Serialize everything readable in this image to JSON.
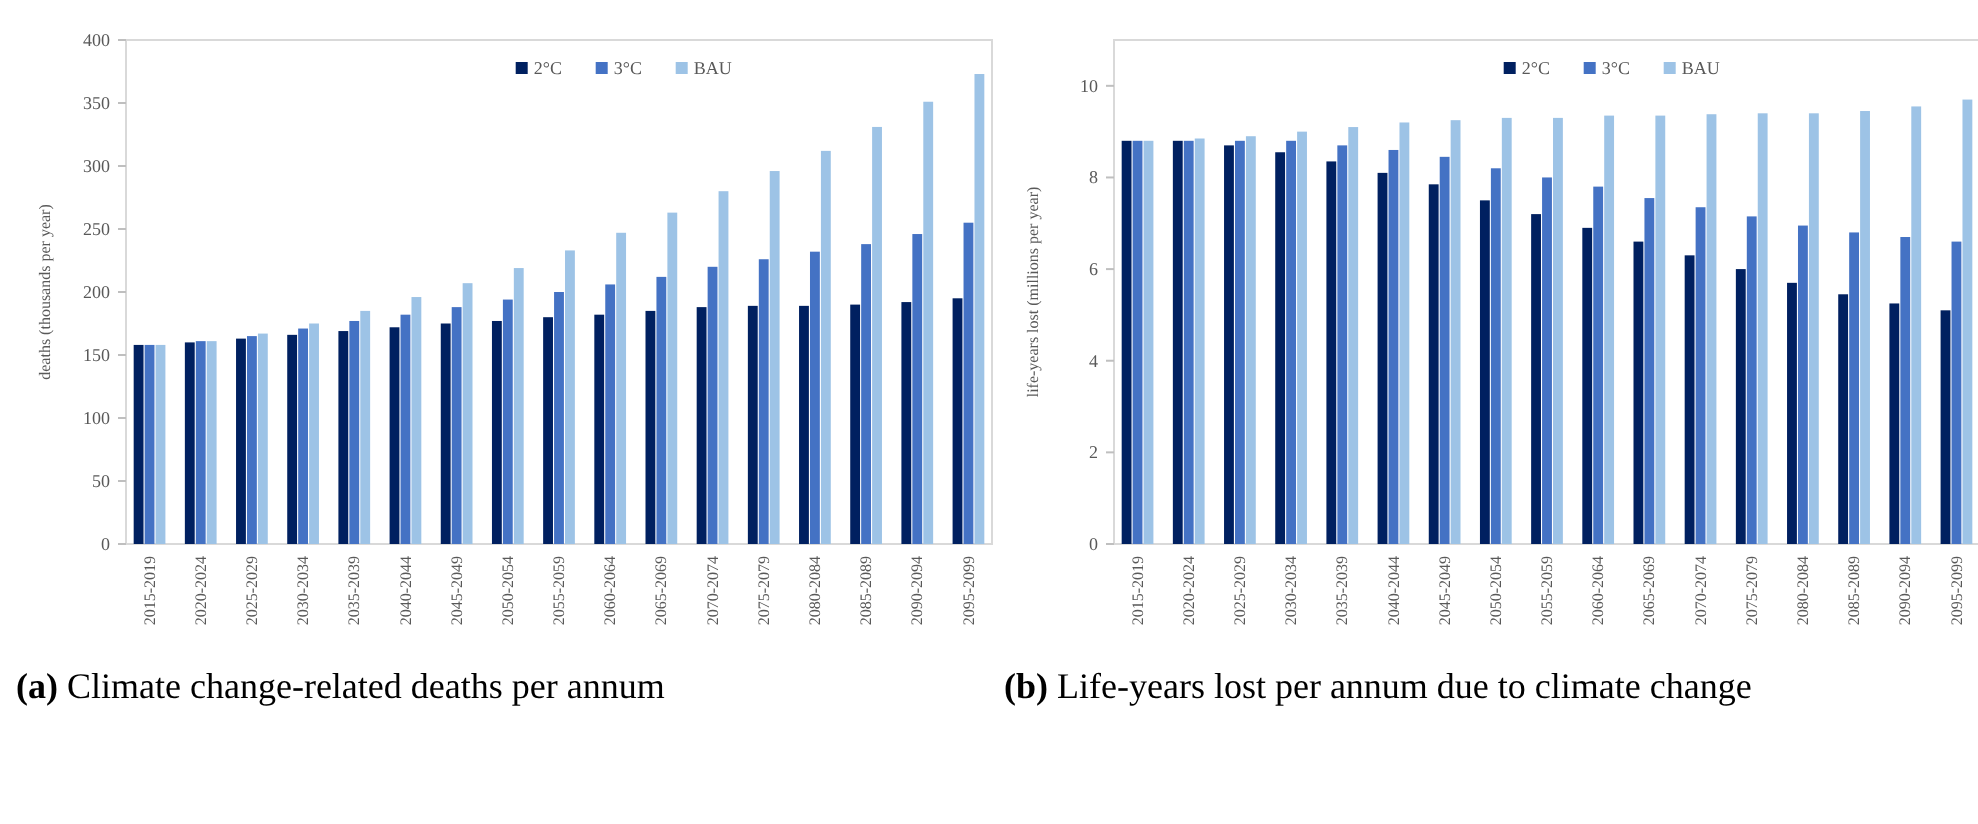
{
  "chart_data": [
    {
      "type": "bar",
      "ylabel": "deaths (thousands per year)",
      "categories": [
        "2015-2019",
        "2020-2024",
        "2025-2029",
        "2030-2034",
        "2035-2039",
        "2040-2044",
        "2045-2049",
        "2050-2054",
        "2055-2059",
        "2060-2064",
        "2065-2069",
        "2070-2074",
        "2075-2079",
        "2080-2084",
        "2085-2089",
        "2090-2094",
        "2095-2099"
      ],
      "series": [
        {
          "name": "2°C",
          "color": "#002060",
          "values": [
            158,
            160,
            163,
            166,
            169,
            172,
            175,
            177,
            180,
            182,
            185,
            188,
            189,
            189,
            190,
            192,
            195
          ]
        },
        {
          "name": "3°C",
          "color": "#4472c4",
          "values": [
            158,
            161,
            165,
            171,
            177,
            182,
            188,
            194,
            200,
            206,
            212,
            220,
            226,
            232,
            238,
            246,
            255
          ]
        },
        {
          "name": "BAU",
          "color": "#9dc3e6",
          "values": [
            158,
            161,
            167,
            175,
            185,
            196,
            207,
            219,
            233,
            247,
            263,
            280,
            296,
            312,
            331,
            351,
            373
          ]
        }
      ],
      "ylim": [
        0,
        400
      ],
      "yticks": [
        0,
        50,
        100,
        150,
        200,
        250,
        300,
        350,
        400
      ],
      "grid": false,
      "legend": "top right",
      "annotations": [
        "(a) Climate change-related deaths per annum"
      ]
    },
    {
      "type": "bar",
      "ylabel": "life-years lost (millions per year)",
      "categories": [
        "2015-2019",
        "2020-2024",
        "2025-2029",
        "2030-2034",
        "2035-2039",
        "2040-2044",
        "2045-2049",
        "2050-2054",
        "2055-2059",
        "2060-2064",
        "2065-2069",
        "2070-2074",
        "2075-2079",
        "2080-2084",
        "2085-2089",
        "2090-2094",
        "2095-2099"
      ],
      "series": [
        {
          "name": "2°C",
          "color": "#002060",
          "values": [
            8.8,
            8.8,
            8.7,
            8.55,
            8.35,
            8.1,
            7.85,
            7.5,
            7.2,
            6.9,
            6.6,
            6.3,
            6.0,
            5.7,
            5.45,
            5.25,
            5.1
          ]
        },
        {
          "name": "3°C",
          "color": "#4472c4",
          "values": [
            8.8,
            8.8,
            8.8,
            8.8,
            8.7,
            8.6,
            8.45,
            8.2,
            8.0,
            7.8,
            7.55,
            7.35,
            7.15,
            6.95,
            6.8,
            6.7,
            6.6
          ]
        },
        {
          "name": "BAU",
          "color": "#9dc3e6",
          "values": [
            8.8,
            8.85,
            8.9,
            9.0,
            9.1,
            9.2,
            9.25,
            9.3,
            9.3,
            9.35,
            9.35,
            9.38,
            9.4,
            9.4,
            9.45,
            9.55,
            9.7
          ]
        }
      ],
      "ylim": [
        0,
        11
      ],
      "yticks": [
        0,
        2,
        4,
        6,
        8,
        10
      ],
      "grid": false,
      "legend": "top right",
      "annotations": [
        "(b) Life-years lost per annum due to climate change"
      ]
    }
  ]
}
